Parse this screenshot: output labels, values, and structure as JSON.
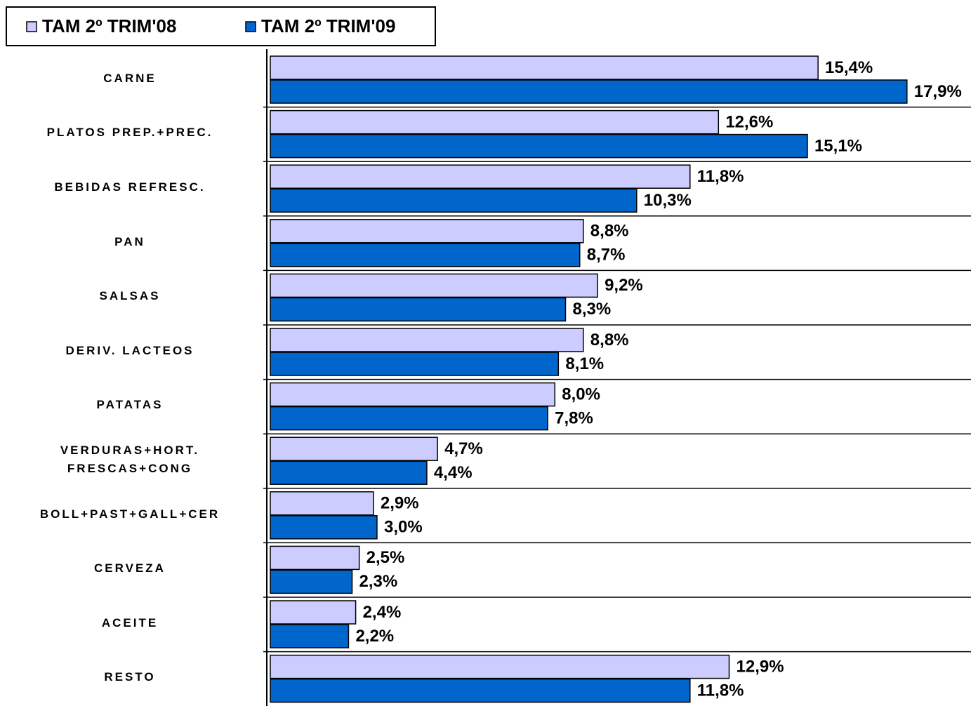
{
  "chart_data": {
    "type": "bar",
    "orientation": "horizontal",
    "categories": [
      "CARNE",
      "PLATOS PREP.+PREC.",
      "BEBIDAS REFRESC.",
      "PAN",
      "SALSAS",
      "DERIV. LACTEOS",
      "PATATAS",
      "VERDURAS+HORT.\nFRESCAS+CONG",
      "BOLL+PAST+GALL+CER",
      "CERVEZA",
      "ACEITE",
      "RESTO"
    ],
    "series": [
      {
        "name": "TAM 2º TRIM'08",
        "color": "#ccccff",
        "values": [
          15.4,
          12.6,
          11.8,
          8.8,
          9.2,
          8.8,
          8.0,
          4.7,
          2.9,
          2.5,
          2.4,
          12.9
        ],
        "value_labels": [
          "15,4%",
          "12,6%",
          "11,8%",
          "8,8%",
          "9,2%",
          "8,8%",
          "8,0%",
          "4,7%",
          "2,9%",
          "2,5%",
          "2,4%",
          "12,9%"
        ]
      },
      {
        "name": "TAM 2º TRIM'09",
        "color": "#0066cc",
        "values": [
          17.9,
          15.1,
          10.3,
          8.7,
          8.3,
          8.1,
          7.8,
          4.4,
          3.0,
          2.3,
          2.2,
          11.8
        ],
        "value_labels": [
          "17,9%",
          "15,1%",
          "10,3%",
          "8,7%",
          "8,3%",
          "8,1%",
          "7,8%",
          "4,4%",
          "3,0%",
          "2,3%",
          "2,2%",
          "11,8%"
        ]
      }
    ],
    "xlim": [
      0,
      19.7
    ],
    "legend": "top-left"
  }
}
